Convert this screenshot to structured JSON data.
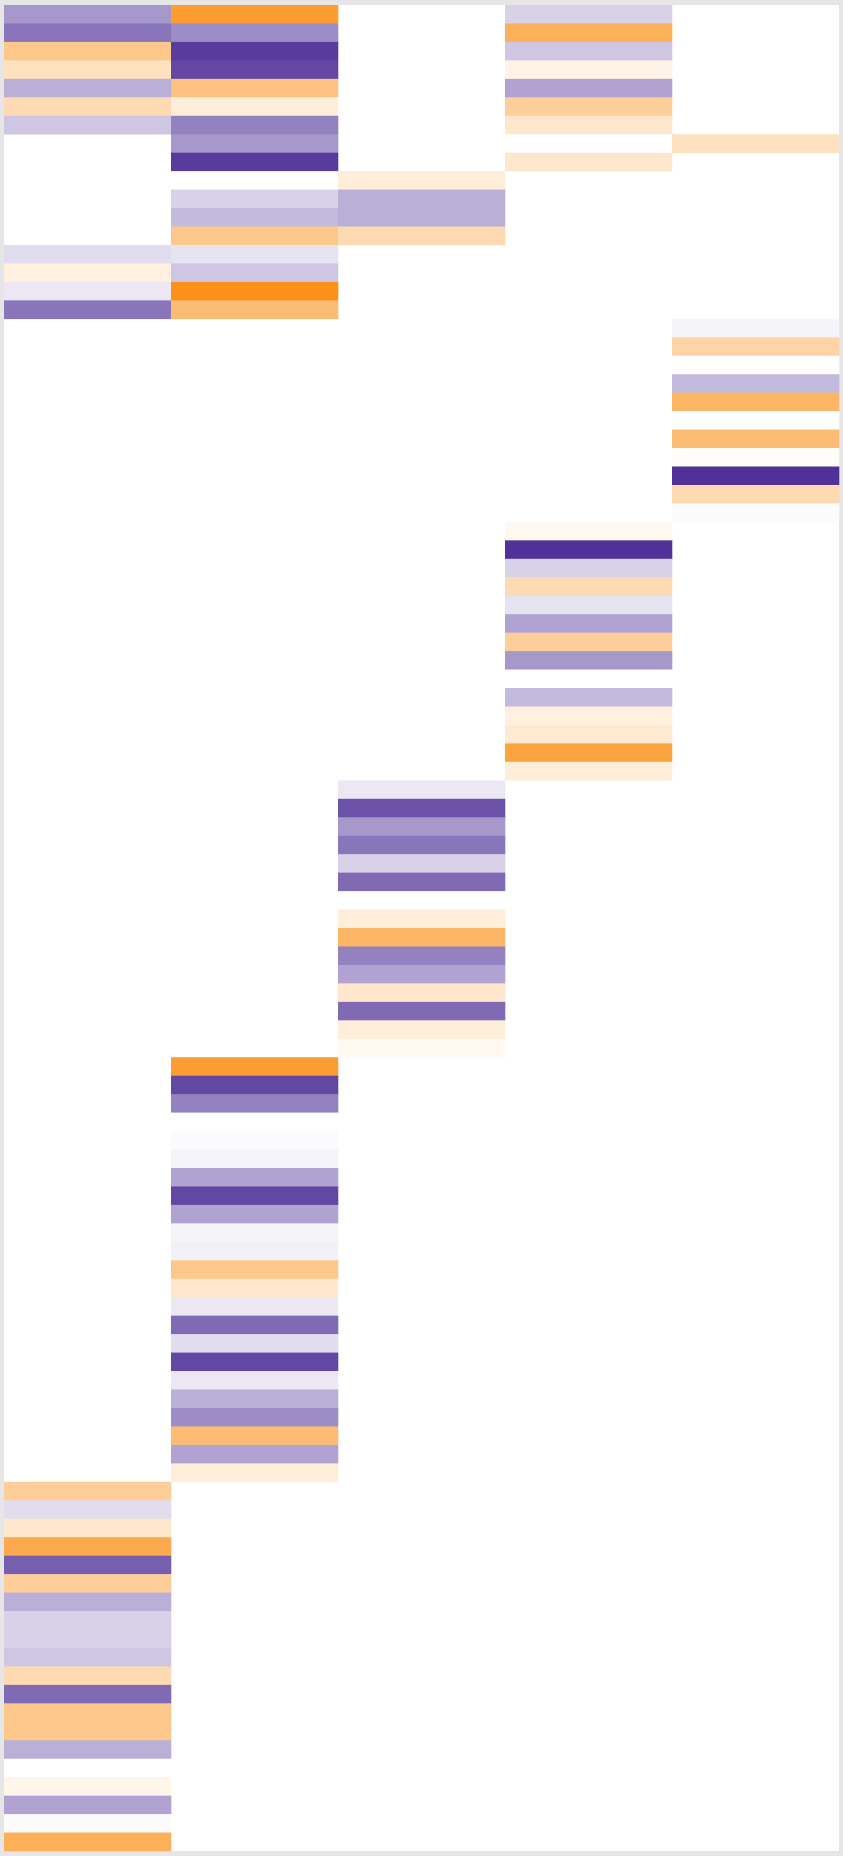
{
  "chart_data": {
    "type": "heatmap",
    "colorscale": [
      {
        "value": -1,
        "color": "#fb8500"
      },
      {
        "value": 0,
        "color": "#ffffff"
      },
      {
        "value": 1,
        "color": "#3b1a8c"
      }
    ],
    "z": [
      [
        0.45,
        0.6,
        -0.45,
        -0.25,
        0.35,
        -0.3,
        0.25,
        null,
        null,
        null,
        null,
        null,
        null,
        0.15,
        -0.12,
        0.1,
        0.6,
        null,
        null,
        null,
        null,
        null,
        null,
        null,
        null,
        null,
        null,
        null,
        null,
        null,
        null,
        null,
        null,
        null,
        null,
        null,
        null,
        null,
        null,
        null,
        null,
        null,
        null,
        null,
        null,
        null,
        null,
        null,
        null,
        null,
        null,
        null,
        null,
        null,
        null,
        null,
        null,
        null,
        null,
        null,
        null,
        null,
        null,
        null,
        null,
        null,
        null,
        null,
        null,
        null,
        null,
        null,
        null,
        null,
        null,
        null,
        null,
        null,
        null,
        null,
        -0.4,
        0.15,
        -0.2,
        -0.7,
        0.7,
        -0.4,
        0.35,
        0.2,
        0.2,
        0.25,
        -0.3,
        0.65,
        -0.45,
        -0.45,
        0.35,
        0.0,
        -0.08,
        0.4,
        0.02,
        -0.65
      ],
      [
        -0.8,
        0.5,
        0.85,
        0.8,
        -0.5,
        -0.15,
        0.55,
        0.45,
        0.85,
        0.0,
        0.2,
        0.3,
        -0.45,
        0.12,
        0.25,
        -0.9,
        -0.55,
        null,
        null,
        null,
        null,
        null,
        null,
        null,
        null,
        null,
        null,
        null,
        null,
        null,
        null,
        null,
        null,
        null,
        null,
        null,
        null,
        null,
        null,
        null,
        null,
        null,
        null,
        null,
        null,
        null,
        null,
        null,
        null,
        null,
        null,
        null,
        null,
        null,
        null,
        null,
        null,
        -0.8,
        0.8,
        0.55,
        0.0,
        0.02,
        0.05,
        0.4,
        0.8,
        0.4,
        0.05,
        0.06,
        -0.45,
        -0.2,
        0.1,
        0.65,
        0.15,
        0.8,
        0.1,
        0.35,
        0.5,
        -0.55,
        0.4,
        -0.15,
        null,
        null,
        null,
        null,
        null,
        null,
        null,
        null,
        null,
        null,
        null,
        null,
        null,
        null,
        null,
        null,
        null,
        null,
        null,
        null
      ],
      [
        null,
        null,
        null,
        null,
        null,
        null,
        null,
        null,
        null,
        -0.15,
        0.35,
        0.35,
        -0.3,
        null,
        null,
        null,
        null,
        null,
        null,
        null,
        null,
        null,
        null,
        null,
        null,
        null,
        null,
        null,
        null,
        null,
        null,
        null,
        null,
        null,
        null,
        null,
        null,
        null,
        null,
        null,
        null,
        null,
        0.1,
        0.75,
        0.45,
        0.6,
        0.2,
        0.65,
        0.0,
        -0.15,
        -0.6,
        0.55,
        0.4,
        -0.2,
        0.65,
        -0.15,
        -0.05,
        null,
        null,
        null,
        null,
        null,
        null,
        null,
        null,
        null,
        null,
        null,
        null,
        null,
        null,
        null,
        null,
        null,
        null,
        null,
        null,
        null,
        null,
        null,
        null,
        null,
        null,
        null,
        null,
        null,
        null,
        null,
        null,
        null,
        null,
        null,
        null,
        null,
        null,
        null,
        null,
        null,
        null,
        null
      ],
      [
        0.2,
        -0.65,
        0.25,
        -0.1,
        0.4,
        -0.4,
        -0.2,
        0.0,
        -0.2,
        null,
        null,
        null,
        null,
        null,
        null,
        null,
        null,
        null,
        null,
        null,
        null,
        null,
        null,
        null,
        null,
        null,
        null,
        null,
        -0.06,
        0.9,
        0.2,
        -0.3,
        0.12,
        0.4,
        -0.4,
        0.45,
        0.0,
        0.3,
        -0.12,
        -0.18,
        -0.75,
        -0.15,
        null,
        null,
        null,
        null,
        null,
        null,
        null,
        null,
        null,
        null,
        null,
        null,
        null,
        null,
        null,
        null,
        null,
        null,
        null,
        null,
        null,
        null,
        null,
        null,
        null,
        null,
        null,
        null,
        null,
        null,
        null,
        null,
        null,
        null,
        null,
        null,
        null,
        null,
        null,
        null,
        null,
        null,
        null,
        null,
        null,
        null,
        null,
        null,
        null,
        null,
        null,
        null,
        null,
        null,
        null,
        null,
        null,
        null
      ],
      [
        null,
        null,
        null,
        null,
        null,
        null,
        null,
        -0.25,
        null,
        null,
        null,
        null,
        null,
        null,
        null,
        null,
        null,
        0.05,
        -0.35,
        0.0,
        0.3,
        -0.6,
        0.0,
        -0.55,
        -0.02,
        0.9,
        -0.3,
        0.02,
        null,
        null,
        null,
        null,
        null,
        null,
        null,
        null,
        null,
        null,
        null,
        null,
        null,
        null,
        null,
        null,
        null,
        null,
        null,
        null,
        null,
        null,
        null,
        null,
        null,
        null,
        null,
        null,
        null,
        null,
        null,
        null,
        null,
        null,
        null,
        null,
        null,
        null,
        null,
        null,
        null,
        null,
        null,
        null,
        null,
        null,
        null,
        null,
        null,
        null,
        null,
        null,
        null,
        null,
        null,
        null,
        null,
        null,
        null,
        null,
        null,
        null,
        null,
        null,
        null,
        null,
        null,
        null,
        null,
        null,
        null,
        null
      ]
    ]
  }
}
